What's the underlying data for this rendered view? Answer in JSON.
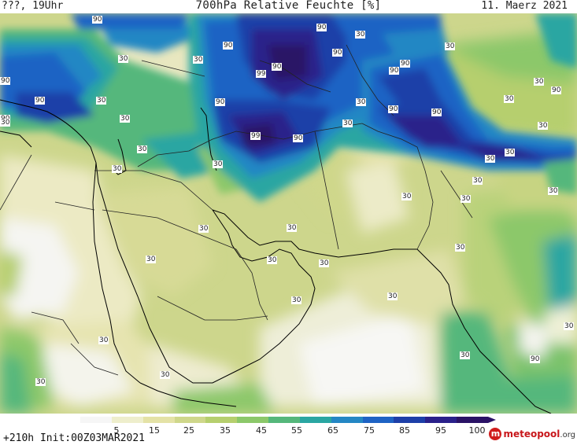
{
  "header": {
    "left_label": "???, 19Uhr",
    "title": "700hPa Relative Feuchte [%]",
    "date": "11. Maerz 2021"
  },
  "footer": {
    "init_text": "+210h Init:00Z03MAR2021",
    "logo_text": "meteopool",
    "logo_tld": ".org"
  },
  "legend": {
    "ticks": [
      "5",
      "15",
      "25",
      "35",
      "45",
      "55",
      "65",
      "75",
      "85",
      "95",
      "100"
    ],
    "colors": [
      "#f6f6f6",
      "#eeeecc",
      "#e4e2a6",
      "#cfd78b",
      "#b6cf6e",
      "#8cc86a",
      "#55b77b",
      "#2aa6a2",
      "#2487c4",
      "#1e63c4",
      "#1d3fa8",
      "#2a208a",
      "#2a1266"
    ]
  },
  "map": {
    "contour_labels": [
      {
        "text": "90"
      },
      {
        "text": "90"
      },
      {
        "text": "90"
      },
      {
        "text": "90"
      },
      {
        "text": "90"
      },
      {
        "text": "90"
      },
      {
        "text": "99"
      },
      {
        "text": "90"
      },
      {
        "text": "90"
      },
      {
        "text": "90"
      },
      {
        "text": "30"
      },
      {
        "text": "30"
      },
      {
        "text": "30"
      },
      {
        "text": "30"
      },
      {
        "text": "30"
      },
      {
        "text": "30"
      },
      {
        "text": "90"
      },
      {
        "text": "90"
      },
      {
        "text": "99"
      },
      {
        "text": "90"
      },
      {
        "text": "30"
      },
      {
        "text": "30"
      },
      {
        "text": "30"
      },
      {
        "text": "30"
      },
      {
        "text": "30"
      },
      {
        "text": "30"
      },
      {
        "text": "30"
      },
      {
        "text": "30"
      },
      {
        "text": "30"
      },
      {
        "text": "30"
      },
      {
        "text": "30"
      },
      {
        "text": "30"
      },
      {
        "text": "30"
      },
      {
        "text": "30"
      },
      {
        "text": "30"
      },
      {
        "text": "30"
      },
      {
        "text": "30"
      },
      {
        "text": "30"
      },
      {
        "text": "30"
      },
      {
        "text": "30"
      },
      {
        "text": "30"
      },
      {
        "text": "30"
      },
      {
        "text": "30"
      },
      {
        "text": "30"
      },
      {
        "text": "30"
      },
      {
        "text": "30"
      },
      {
        "text": "90"
      },
      {
        "text": "90"
      },
      {
        "text": "90"
      },
      {
        "text": "30"
      },
      {
        "text": "30"
      },
      {
        "text": "90"
      }
    ]
  }
}
